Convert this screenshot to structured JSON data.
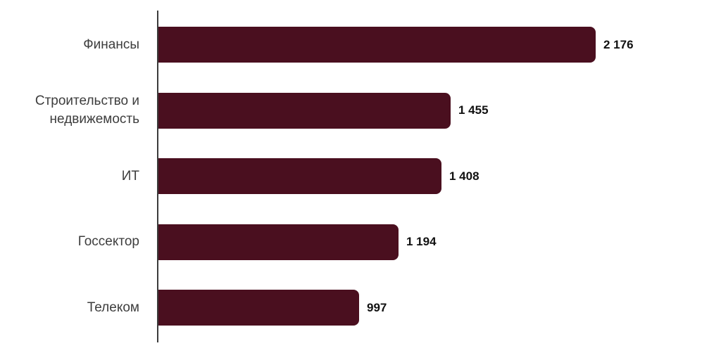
{
  "chart_data": {
    "type": "bar",
    "orientation": "horizontal",
    "title": "",
    "xlabel": "",
    "ylabel": "",
    "grid": false,
    "legend": false,
    "xlim": [
      0,
      2176
    ],
    "categories": [
      "Финансы",
      "Строительство и недвижемость",
      "ИТ",
      "Госсектор",
      "Телеком"
    ],
    "values": [
      2176,
      1455,
      1408,
      1194,
      997
    ],
    "value_labels": [
      "2 176",
      "1 455",
      "1 408",
      "1 194",
      "997"
    ]
  },
  "colors": {
    "bar": "#4a0f1f",
    "axis": "#3b3b3b",
    "category_text": "#3d3d3d",
    "value_text": "#111111",
    "background": "#ffffff"
  }
}
